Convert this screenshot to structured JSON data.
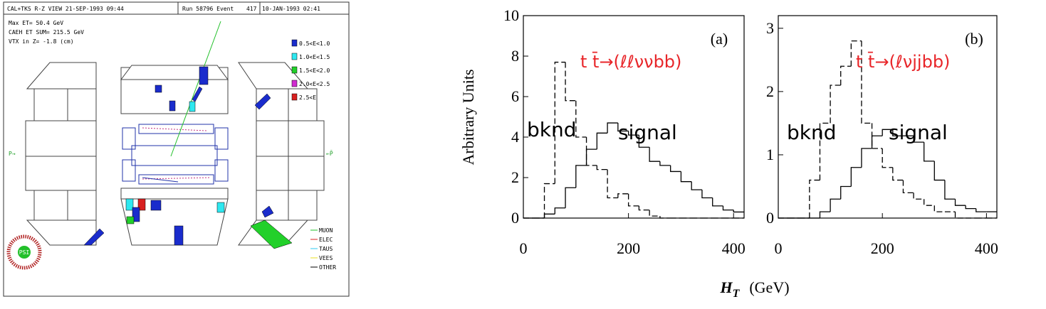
{
  "event_display": {
    "header": [
      "CAL+TKS R-Z VIEW 21-SEP-1993 09:44",
      "Run    58796 Event",
      "417",
      "10-JAN-1993 02:41"
    ],
    "info": [
      "Max ET=    50.4 GeV",
      "CAEH ET SUM= 215.5 GeV",
      "VTX in Z=  -1.8 (cm)"
    ],
    "energy_legend": [
      {
        "label": "0.5<E<1.0",
        "color": "#1a2ccc"
      },
      {
        "label": "1.0<E<1.5",
        "color": "#2ee8f0"
      },
      {
        "label": "1.5<E<2.0",
        "color": "#22d02a"
      },
      {
        "label": "2.0<E<2.5",
        "color": "#d02ad0"
      },
      {
        "label": "2.5<E",
        "color": "#d82020"
      }
    ],
    "beam_left": "P→",
    "beam_right": "←P̄",
    "object_legend": [
      {
        "label": "MUON",
        "color": "#22c02a"
      },
      {
        "label": "ELEC",
        "color": "#d82020"
      },
      {
        "label": "TAUS",
        "color": "#2ec8f0"
      },
      {
        "label": "VEES",
        "color": "#e8e020"
      },
      {
        "label": "OTHER",
        "color": "#000000"
      }
    ],
    "logo": "PSI"
  },
  "y_label": "Arbitrary Units",
  "x_label": {
    "symbol": "H",
    "subscript": "T",
    "unit": "(GeV)"
  },
  "chart_data": [
    {
      "type": "histogram",
      "panel": "(a)",
      "process": "t t̄→(ℓℓννbb)",
      "process_color": "#e8262a",
      "labels": [
        "bknd",
        "signal"
      ],
      "bins": [
        0,
        20,
        40,
        60,
        80,
        100,
        120,
        140,
        160,
        180,
        200,
        220,
        240,
        260,
        280,
        300,
        320,
        340,
        360,
        380,
        400,
        420
      ],
      "series": [
        {
          "name": "bknd",
          "color": "#000000",
          "line_style": "dashed",
          "values": [
            0,
            0,
            1.7,
            7.7,
            5.8,
            4.0,
            2.6,
            2.4,
            1.0,
            1.2,
            0.6,
            0.4,
            0.1,
            0,
            0,
            0,
            0,
            0,
            0,
            0,
            0
          ]
        },
        {
          "name": "signal",
          "color": "#000000",
          "line_style": "solid",
          "values": [
            0,
            0,
            0.2,
            0.5,
            1.5,
            2.6,
            3.4,
            4.2,
            4.7,
            4.3,
            4.1,
            3.5,
            2.8,
            2.6,
            2.3,
            1.8,
            1.4,
            1.0,
            0.6,
            0.4,
            0.3
          ]
        }
      ],
      "xlim": [
        0,
        420
      ],
      "xticks": [
        0,
        200,
        400
      ],
      "ylim": [
        0,
        10
      ],
      "yticks": [
        0,
        2,
        4,
        6,
        8,
        10
      ]
    },
    {
      "type": "histogram",
      "panel": "(b)",
      "process": "t t̄→(ℓνjjbb)",
      "process_color": "#e8262a",
      "labels": [
        "bknd",
        "signal"
      ],
      "bins": [
        0,
        20,
        40,
        60,
        80,
        100,
        120,
        140,
        160,
        180,
        200,
        220,
        240,
        260,
        280,
        300,
        320,
        340,
        360,
        380,
        400,
        420
      ],
      "series": [
        {
          "name": "bknd",
          "color": "#000000",
          "line_style": "dashed",
          "values": [
            0,
            0,
            0,
            0.6,
            1.5,
            2.1,
            2.4,
            2.8,
            1.5,
            1.1,
            0.8,
            0.6,
            0.4,
            0.3,
            0.2,
            0.1,
            0.1,
            0,
            0,
            0,
            0
          ]
        },
        {
          "name": "signal",
          "color": "#000000",
          "line_style": "solid",
          "values": [
            0,
            0,
            0,
            0,
            0.1,
            0.3,
            0.5,
            0.8,
            1.1,
            1.3,
            1.4,
            1.3,
            1.3,
            1.2,
            0.9,
            0.6,
            0.3,
            0.2,
            0.15,
            0.1,
            0.1
          ]
        }
      ],
      "xlim": [
        0,
        420
      ],
      "xticks": [
        0,
        200,
        400
      ],
      "ylim": [
        0,
        3.2
      ],
      "yticks": [
        0,
        1,
        2,
        3
      ]
    }
  ]
}
